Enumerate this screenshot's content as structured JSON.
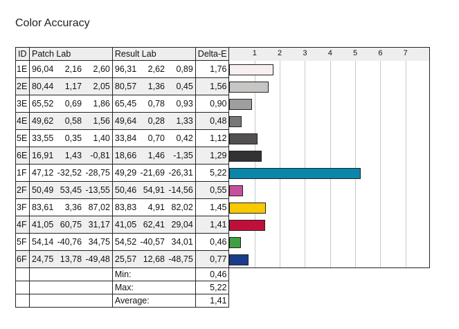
{
  "title": "Color Accuracy",
  "headers": {
    "id": "ID",
    "patch": "Patch Lab",
    "result": "Result Lab",
    "delta": "Delta-E"
  },
  "chart_data": {
    "type": "bar",
    "orientation": "horizontal",
    "title": "Color Accuracy",
    "xlabel": "Delta-E",
    "xlim": [
      0,
      8
    ],
    "ticks": [
      "1",
      "2",
      "3",
      "4",
      "5",
      "6",
      "7"
    ],
    "grid": true,
    "categories": [
      "1E",
      "2E",
      "3E",
      "4E",
      "5E",
      "6E",
      "1F",
      "2F",
      "3F",
      "4F",
      "5F",
      "6F"
    ],
    "values": [
      1.76,
      1.56,
      0.9,
      0.48,
      1.12,
      1.29,
      5.22,
      0.55,
      1.45,
      1.41,
      0.46,
      0.77
    ],
    "colors": [
      "#f8f0f0",
      "#c8c6c4",
      "#a09e9c",
      "#7a7876",
      "#525050",
      "#333333",
      "#0a86a8",
      "#c850a0",
      "#f8c800",
      "#c0103a",
      "#40a040",
      "#1a3c8c"
    ]
  },
  "rows": [
    {
      "id": "1E",
      "patch": [
        "96,04",
        "2,16",
        "2,60"
      ],
      "result": [
        "96,31",
        "2,62",
        "0,89"
      ],
      "delta": "1,76"
    },
    {
      "id": "2E",
      "patch": [
        "80,44",
        "1,17",
        "2,05"
      ],
      "result": [
        "80,57",
        "1,36",
        "0,45"
      ],
      "delta": "1,56"
    },
    {
      "id": "3E",
      "patch": [
        "65,52",
        "0,69",
        "1,86"
      ],
      "result": [
        "65,45",
        "0,78",
        "0,93"
      ],
      "delta": "0,90"
    },
    {
      "id": "4E",
      "patch": [
        "49,62",
        "0,58",
        "1,56"
      ],
      "result": [
        "49,64",
        "0,28",
        "1,33"
      ],
      "delta": "0,48"
    },
    {
      "id": "5E",
      "patch": [
        "33,55",
        "0,35",
        "1,40"
      ],
      "result": [
        "33,84",
        "0,70",
        "0,42"
      ],
      "delta": "1,12"
    },
    {
      "id": "6E",
      "patch": [
        "16,91",
        "1,43",
        "-0,81"
      ],
      "result": [
        "18,66",
        "1,46",
        "-1,35"
      ],
      "delta": "1,29"
    },
    {
      "id": "1F",
      "patch": [
        "47,12",
        "-32,52",
        "-28,75"
      ],
      "result": [
        "49,29",
        "-21,69",
        "-26,31"
      ],
      "delta": "5,22"
    },
    {
      "id": "2F",
      "patch": [
        "50,49",
        "53,45",
        "-13,55"
      ],
      "result": [
        "50,46",
        "54,91",
        "-14,56"
      ],
      "delta": "0,55"
    },
    {
      "id": "3F",
      "patch": [
        "83,61",
        "3,36",
        "87,02"
      ],
      "result": [
        "83,83",
        "4,91",
        "82,02"
      ],
      "delta": "1,45"
    },
    {
      "id": "4F",
      "patch": [
        "41,05",
        "60,75",
        "31,17"
      ],
      "result": [
        "41,05",
        "62,41",
        "29,04"
      ],
      "delta": "1,41"
    },
    {
      "id": "5F",
      "patch": [
        "54,14",
        "-40,76",
        "34,75"
      ],
      "result": [
        "54,52",
        "-40,57",
        "34,01"
      ],
      "delta": "0,46"
    },
    {
      "id": "6F",
      "patch": [
        "24,75",
        "13,78",
        "-49,48"
      ],
      "result": [
        "25,57",
        "12,68",
        "-48,75"
      ],
      "delta": "0,77"
    }
  ],
  "summary": [
    {
      "label": "Min:",
      "value": "0,46"
    },
    {
      "label": "Max:",
      "value": "5,22"
    },
    {
      "label": "Average:",
      "value": "1,41"
    }
  ]
}
